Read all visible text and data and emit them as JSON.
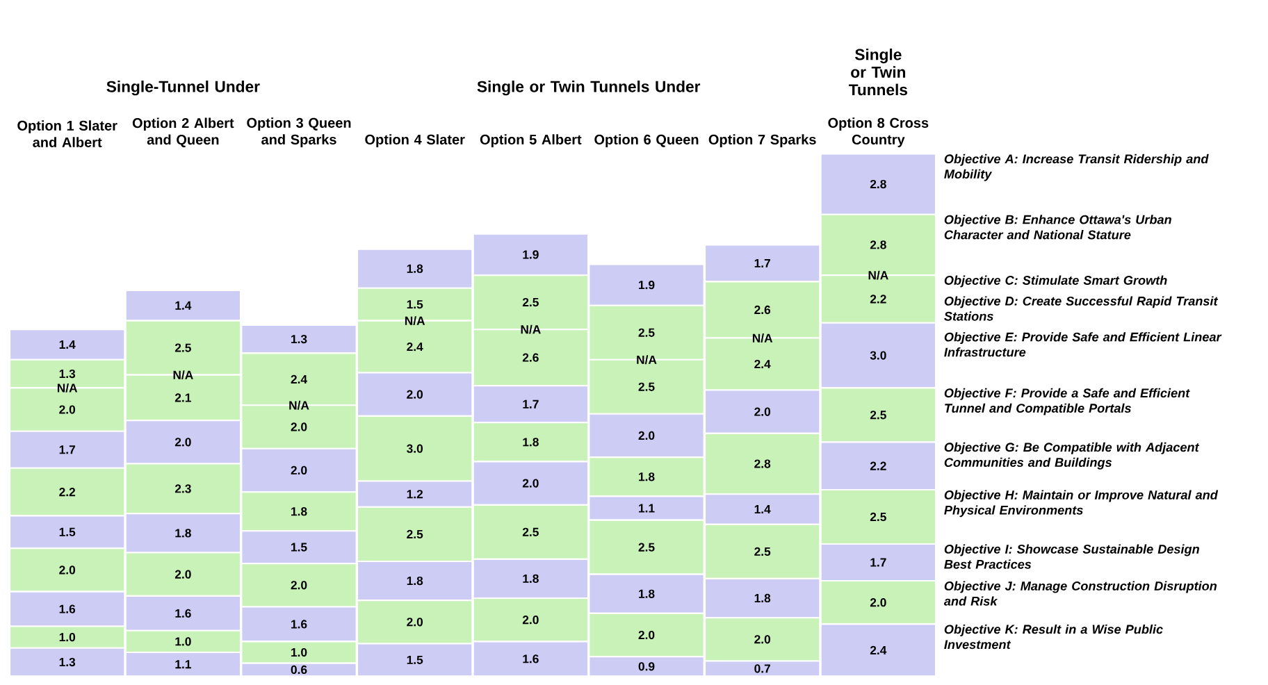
{
  "chart_data": {
    "type": "bar",
    "stacked": true,
    "tick_labels": "x",
    "categories": [
      "Option 1 Slater and Albert",
      "Option 2 Albert and Queen",
      "Option 3 Queen and Sparks",
      "Option 4 Slater",
      "Option 5 Albert",
      "Option 6 Queen",
      "Option 7 Sparks",
      "Option 8 Cross Country"
    ],
    "annotations": [
      "Single-Tunnel Under",
      "Single or Twin Tunnels Under",
      "Single or Twin Tunnels"
    ],
    "series": [
      {
        "name": "Objective K: Result in a Wise Public Investment",
        "color": "#ccccf5",
        "values": [
          1.3,
          1.1,
          0.6,
          1.5,
          1.6,
          0.9,
          0.7,
          2.4
        ],
        "value_labels": [
          "1.3",
          "1.1",
          "0.6",
          "1.5",
          "1.6",
          "0.9",
          "0.7",
          "2.4"
        ]
      },
      {
        "name": "Objective J: Manage Construction Disruption and Risk",
        "color": "#c8f2b8",
        "values": [
          1.0,
          1.0,
          1.0,
          2.0,
          2.0,
          2.0,
          2.0,
          2.0
        ],
        "value_labels": [
          "1.0",
          "1.0",
          "1.0",
          "2.0",
          "2.0",
          "2.0",
          "2.0",
          "2.0"
        ]
      },
      {
        "name": "Objective I: Showcase Sustainable Design Best Practices",
        "color": "#ccccf5",
        "values": [
          1.6,
          1.6,
          1.6,
          1.8,
          1.8,
          1.8,
          1.8,
          1.7
        ],
        "value_labels": [
          "1.6",
          "1.6",
          "1.6",
          "1.8",
          "1.8",
          "1.8",
          "1.8",
          "1.7"
        ]
      },
      {
        "name": "Objective H: Maintain or Improve Natural and Physical Environments",
        "color": "#c8f2b8",
        "values": [
          2.0,
          2.0,
          2.0,
          2.5,
          2.5,
          2.5,
          2.5,
          2.5
        ],
        "value_labels": [
          "2.0",
          "2.0",
          "2.0",
          "2.5",
          "2.5",
          "2.5",
          "2.5",
          "2.5"
        ]
      },
      {
        "name": "Objective G: Be Compatible with Adjacent Communities and Buildings",
        "color": "#ccccf5",
        "values": [
          1.5,
          1.8,
          1.5,
          1.2,
          2.0,
          1.1,
          1.4,
          2.2
        ],
        "value_labels": [
          "1.5",
          "1.8",
          "1.5",
          "1.2",
          "2.0",
          "1.1",
          "1.4",
          "2.2"
        ]
      },
      {
        "name": "Objective F: Provide a Safe and Efficient Tunnel and Compatible Portals",
        "color": "#c8f2b8",
        "values": [
          2.2,
          2.3,
          1.8,
          3.0,
          1.8,
          1.8,
          2.8,
          2.5
        ],
        "value_labels": [
          "2.2",
          "2.3",
          "1.8",
          "3.0",
          "1.8",
          "1.8",
          "2.8",
          "2.5"
        ]
      },
      {
        "name": "Objective E: Provide Safe and Efficient Linear Infrastructure",
        "color": "#ccccf5",
        "values": [
          1.7,
          2.0,
          2.0,
          2.0,
          1.7,
          2.0,
          2.0,
          3.0
        ],
        "value_labels": [
          "1.7",
          "2.0",
          "2.0",
          "2.0",
          "1.7",
          "2.0",
          "2.0",
          "3.0"
        ]
      },
      {
        "name": "Objective D: Create Successful Rapid Transit Stations",
        "color": "#c8f2b8",
        "values": [
          2.0,
          2.1,
          2.0,
          2.4,
          2.6,
          2.5,
          2.4,
          2.2
        ],
        "value_labels": [
          "2.0",
          "2.1",
          "2.0",
          "2.4",
          "2.6",
          "2.5",
          "2.4",
          "2.2"
        ]
      },
      {
        "name": "Objective C: Stimulate Smart Growth",
        "values": [
          null,
          null,
          null,
          null,
          null,
          null,
          null,
          null
        ],
        "value_labels": [
          "N/A",
          "N/A",
          "N/A",
          "N/A",
          "N/A",
          "N/A",
          "N/A",
          "N/A"
        ]
      },
      {
        "name": "Objective B: Enhance Ottawa's Urban Character and National Stature",
        "color": "#c8f2b8",
        "values": [
          1.3,
          2.5,
          2.4,
          1.5,
          2.5,
          2.5,
          2.6,
          2.8
        ],
        "value_labels": [
          "1.3",
          "2.5",
          "2.4",
          "1.5",
          "2.5",
          "2.5",
          "2.6",
          "2.8"
        ]
      },
      {
        "name": "Objective A: Increase Transit Ridership and Mobility",
        "color": "#ccccf5",
        "values": [
          1.4,
          1.4,
          1.3,
          1.8,
          1.9,
          1.9,
          1.7,
          2.8
        ],
        "value_labels": [
          "1.4",
          "1.4",
          "1.3",
          "1.8",
          "1.9",
          "1.9",
          "1.7",
          "2.8"
        ]
      }
    ]
  }
}
